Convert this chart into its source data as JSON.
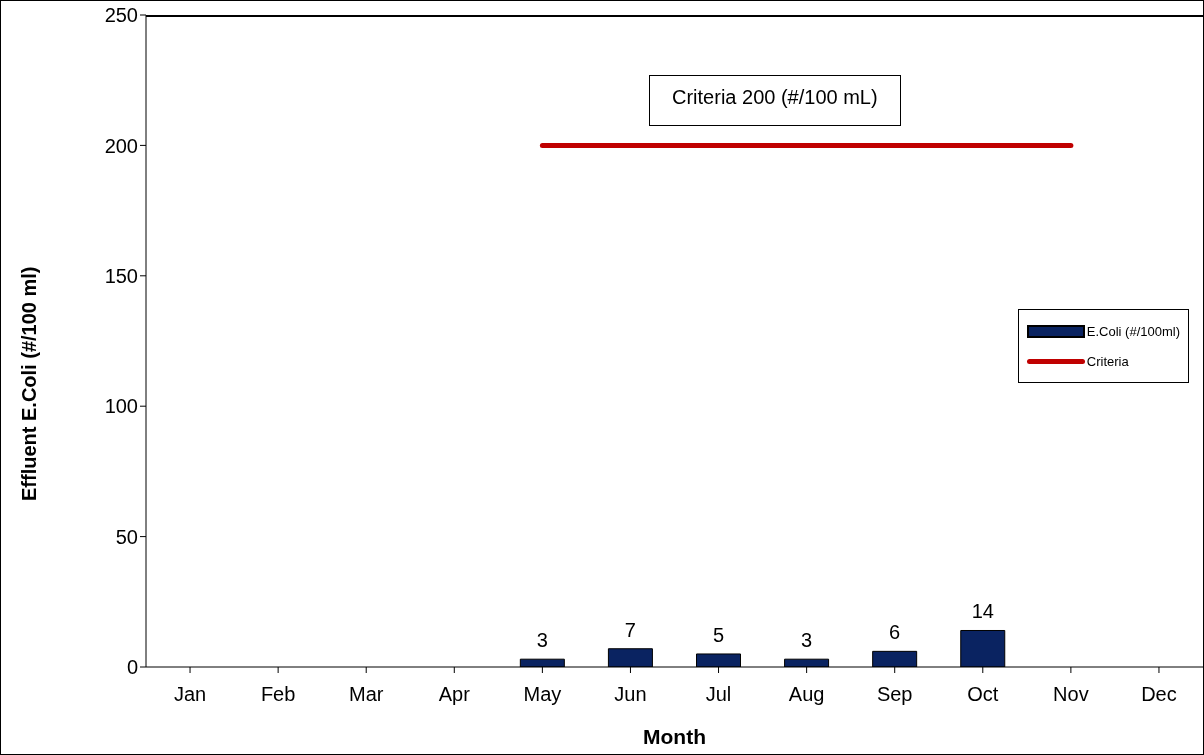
{
  "chart_data": {
    "type": "bar",
    "xlabel": "Month",
    "ylabel": "Effluent E.Coli (#/100 ml)",
    "categories": [
      "Jan",
      "Feb",
      "Mar",
      "Apr",
      "May",
      "Jun",
      "Jul",
      "Aug",
      "Sep",
      "Oct",
      "Nov",
      "Dec"
    ],
    "series": [
      {
        "name": "E.Coli (#/100ml)",
        "color": "#0a2361",
        "values": [
          null,
          null,
          null,
          null,
          3,
          7,
          5,
          3,
          6,
          14,
          null,
          null
        ],
        "value_labels": [
          null,
          null,
          null,
          null,
          "3",
          "7",
          "5",
          "3",
          "6",
          "14",
          null,
          null
        ]
      },
      {
        "name": "Criteria",
        "type": "line",
        "color": "#c00000",
        "values": [
          null,
          null,
          null,
          null,
          200,
          200,
          200,
          200,
          200,
          200,
          200,
          null
        ]
      }
    ],
    "ylim": [
      0,
      250
    ],
    "yticks": [
      0,
      50,
      100,
      150,
      200,
      250
    ],
    "grid": false,
    "legend": "right",
    "marker": "none",
    "line_style": "solid",
    "annotations": [
      "Criteria 200 (#/100 mL)"
    ]
  }
}
